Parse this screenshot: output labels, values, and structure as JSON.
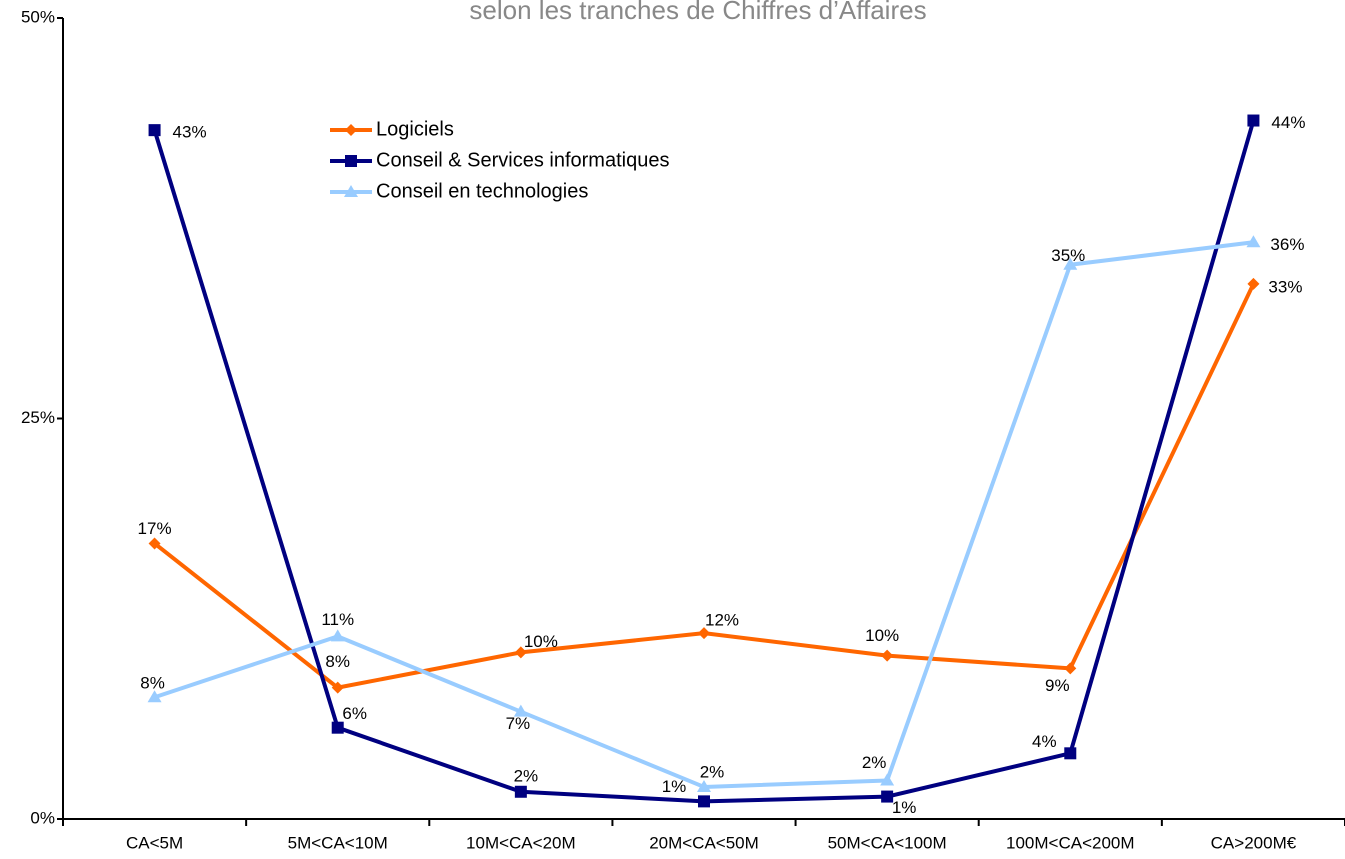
{
  "chart_data": {
    "type": "line",
    "title": "selon les tranches de Chiffres d’Affaires",
    "categories": [
      "CA<5M",
      "5M<CA<10M",
      "10M<CA<20M",
      "20M<CA<50M",
      "50M<CA<100M",
      "100M<CA<200M",
      "CA>200M€"
    ],
    "series": [
      {
        "name": "Logiciels",
        "color": "#ff6600",
        "marker": "diamond",
        "values": [
          17.2,
          8.2,
          10.4,
          11.6,
          10.2,
          9.4,
          33.4
        ],
        "value_labels": [
          "17%",
          "8%",
          "10%",
          "12%",
          "10%",
          "9%",
          "33%"
        ]
      },
      {
        "name": "Conseil & Services informatiques",
        "color": "#000080",
        "marker": "square",
        "values": [
          43.0,
          5.7,
          1.7,
          1.1,
          1.4,
          4.1,
          43.6
        ],
        "value_labels": [
          "43%",
          "6%",
          "2%",
          "1%",
          "1%",
          "4%",
          "44%"
        ]
      },
      {
        "name": "Conseil en technologies",
        "color": "#99ccff",
        "marker": "triangle",
        "values": [
          7.6,
          11.4,
          6.7,
          2.0,
          2.4,
          34.6,
          36.0
        ],
        "value_labels": [
          "8%",
          "11%",
          "7%",
          "2%",
          "2%",
          "35%",
          "36%"
        ]
      }
    ],
    "ylim": [
      0,
      50
    ],
    "yticks": [
      {
        "value": 0,
        "label": "0%"
      },
      {
        "value": 25,
        "label": "25%"
      },
      {
        "value": 50,
        "label": "50%"
      }
    ],
    "grid": false
  }
}
